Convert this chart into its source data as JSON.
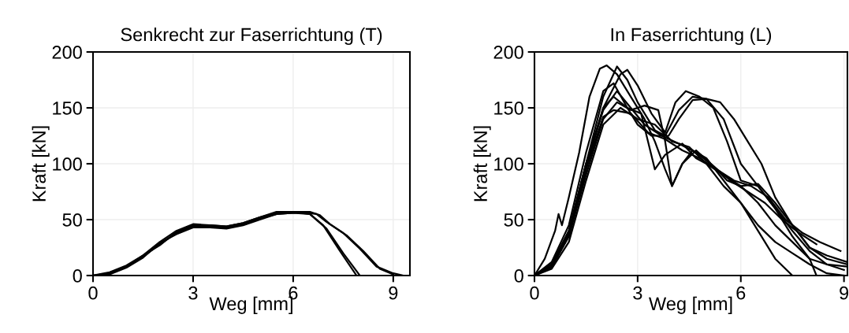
{
  "chart_data": [
    {
      "type": "line",
      "title": "Senkrecht zur Faserrichtung (T)",
      "xlabel": "Weg [mm]",
      "ylabel": "Kraft [kN]",
      "xlim": [
        0,
        9.5
      ],
      "xticks": [
        0,
        3,
        6,
        9
      ],
      "ylim": [
        0,
        200
      ],
      "yticks": [
        0,
        50,
        100,
        150,
        200
      ],
      "grid": true,
      "series": [
        {
          "color": "#000000",
          "x": [
            0,
            0.5,
            1,
            1.5,
            2,
            2.5,
            3,
            3.5,
            4,
            4.5,
            5,
            5.5,
            6,
            6.5,
            7,
            7.5,
            8
          ],
          "values": [
            0,
            2,
            8,
            17,
            28,
            38,
            44,
            44,
            43,
            46,
            51,
            55,
            56,
            55,
            42,
            20,
            0
          ]
        },
        {
          "color": "#000000",
          "x": [
            0,
            0.5,
            1,
            1.5,
            2,
            2.5,
            3,
            3.5,
            4,
            4.5,
            5,
            5.5,
            6,
            6.5,
            6.9,
            7.4,
            7.9
          ],
          "values": [
            0,
            3,
            9,
            18,
            27,
            39,
            45,
            45,
            44,
            47,
            52,
            56,
            57,
            55,
            45,
            22,
            0
          ]
        },
        {
          "color": "#000000",
          "x": [
            0,
            0.5,
            1,
            1.5,
            2,
            2.5,
            3,
            3.5,
            4,
            4.5,
            5,
            5.5,
            6,
            6.4,
            6.7,
            7,
            7.5,
            8,
            8.5,
            9,
            9.3
          ],
          "values": [
            0,
            1,
            7,
            16,
            29,
            37,
            43,
            43,
            42,
            45,
            50,
            55,
            56,
            56,
            55,
            48,
            38,
            24,
            8,
            2,
            0
          ]
        },
        {
          "color": "#000000",
          "x": [
            0,
            0.5,
            1,
            1.5,
            2,
            2.5,
            3,
            3.5,
            4,
            4.5,
            5,
            5.5,
            6,
            6.5,
            6.8,
            7.1,
            7.6,
            8.1,
            8.6,
            9
          ],
          "values": [
            0,
            2,
            8,
            18,
            30,
            40,
            46,
            45,
            44,
            47,
            52,
            57,
            57,
            57,
            54,
            46,
            36,
            22,
            6,
            1
          ]
        }
      ]
    },
    {
      "type": "line",
      "title": "In Faserrichtung (L)",
      "xlabel": "Weg [mm]",
      "ylabel": "Kraft [kN]",
      "xlim": [
        0,
        9.1
      ],
      "xticks": [
        0,
        3,
        6,
        9
      ],
      "ylim": [
        0,
        200
      ],
      "yticks": [
        0,
        50,
        100,
        150,
        200
      ],
      "grid": true,
      "series": [
        {
          "color": "#000000",
          "x": [
            0,
            0.3,
            0.6,
            0.7,
            0.8,
            1.0,
            1.3,
            1.6,
            1.9,
            2.1,
            2.4,
            2.8,
            3.2,
            3.5,
            3.8,
            4.0,
            4.3,
            4.6,
            5,
            5.5,
            6,
            6.5,
            7,
            7.5
          ],
          "values": [
            0,
            15,
            40,
            55,
            45,
            70,
            110,
            160,
            185,
            188,
            180,
            160,
            140,
            120,
            95,
            80,
            100,
            112,
            105,
            85,
            65,
            40,
            15,
            0
          ]
        },
        {
          "color": "#000000",
          "x": [
            0,
            0.5,
            1,
            1.5,
            2,
            2.4,
            2.7,
            3.0,
            3.5,
            3.8,
            4.2,
            4.6,
            5,
            5.5,
            6,
            6.5,
            7,
            7.5,
            8,
            8.2
          ],
          "values": [
            0,
            10,
            40,
            100,
            160,
            187,
            175,
            155,
            130,
            125,
            148,
            160,
            158,
            140,
            100,
            80,
            60,
            35,
            15,
            0
          ]
        },
        {
          "color": "#000000",
          "x": [
            0,
            0.5,
            1,
            1.5,
            2,
            2.5,
            2.7,
            3,
            3.4,
            3.8,
            4.1,
            4.4,
            4.8,
            5.2,
            5.6,
            6,
            6.5,
            7,
            7.5,
            8,
            8.5,
            9.1
          ],
          "values": [
            0,
            8,
            35,
            95,
            150,
            180,
            184,
            170,
            145,
            128,
            155,
            165,
            160,
            150,
            120,
            85,
            80,
            60,
            40,
            22,
            10,
            8
          ]
        },
        {
          "color": "#000000",
          "x": [
            0,
            0.5,
            1,
            1.5,
            2,
            2.3,
            2.7,
            3,
            3.4,
            3.9,
            4.2,
            4.6,
            5.0,
            5.4,
            5.8,
            6.2,
            6.6,
            7,
            7.5,
            8,
            8.5,
            9.1
          ],
          "values": [
            0,
            12,
            45,
            110,
            165,
            172,
            150,
            135,
            125,
            125,
            140,
            157,
            158,
            155,
            140,
            120,
            100,
            70,
            45,
            25,
            15,
            10
          ]
        },
        {
          "color": "#000000",
          "x": [
            0,
            0.5,
            1,
            1.5,
            2,
            2.3,
            2.7,
            3.1,
            3.3,
            3.5,
            3.8,
            4.3,
            4.7,
            5,
            5.5,
            6,
            6.5,
            7,
            7.5,
            8,
            8.5,
            9
          ],
          "values": [
            0,
            10,
            40,
            100,
            150,
            160,
            150,
            145,
            120,
            95,
            108,
            118,
            105,
            100,
            90,
            80,
            65,
            45,
            30,
            15,
            10,
            5
          ]
        },
        {
          "color": "#000000",
          "x": [
            0,
            0.5,
            1,
            1.5,
            2,
            2.4,
            2.8,
            3.2,
            3.6,
            3.8,
            4.0,
            4.3,
            4.7,
            5.2,
            5.6,
            6,
            6.5,
            7,
            7.5,
            8,
            8.5,
            9.1
          ],
          "values": [
            0,
            8,
            35,
            90,
            140,
            155,
            148,
            152,
            148,
            120,
            80,
            100,
            112,
            98,
            85,
            80,
            82,
            65,
            45,
            25,
            18,
            12
          ]
        },
        {
          "color": "#000000",
          "x": [
            0,
            0.5,
            1,
            1.5,
            2,
            2.5,
            3,
            3.5,
            4,
            4.5,
            5,
            5.5,
            6,
            6.5,
            7,
            7.5,
            8,
            8.5,
            9
          ],
          "values": [
            0,
            6,
            30,
            85,
            135,
            150,
            140,
            135,
            120,
            115,
            100,
            80,
            65,
            45,
            30,
            20,
            10,
            2,
            0
          ]
        },
        {
          "color": "#000000",
          "x": [
            0,
            0.5,
            1,
            1.5,
            2,
            2.4,
            2.8,
            3.2,
            3.7,
            4.2,
            4.7,
            5.2,
            5.7,
            6.2,
            6.7,
            7.2,
            7.7,
            8.2
          ],
          "values": [
            0,
            8,
            38,
            100,
            148,
            165,
            150,
            135,
            125,
            118,
            110,
            98,
            85,
            75,
            65,
            50,
            38,
            28
          ]
        },
        {
          "color": "#000000",
          "x": [
            0,
            0.5,
            1,
            1.5,
            2,
            2.3,
            2.8,
            3.3,
            3.8,
            4.3,
            4.8,
            5.3,
            5.8,
            6.3,
            6.8,
            7.3,
            7.8,
            8.3,
            8.9
          ],
          "values": [
            0,
            7,
            36,
            95,
            142,
            148,
            145,
            128,
            122,
            112,
            105,
            95,
            85,
            80,
            70,
            50,
            38,
            30,
            22
          ]
        }
      ]
    }
  ]
}
